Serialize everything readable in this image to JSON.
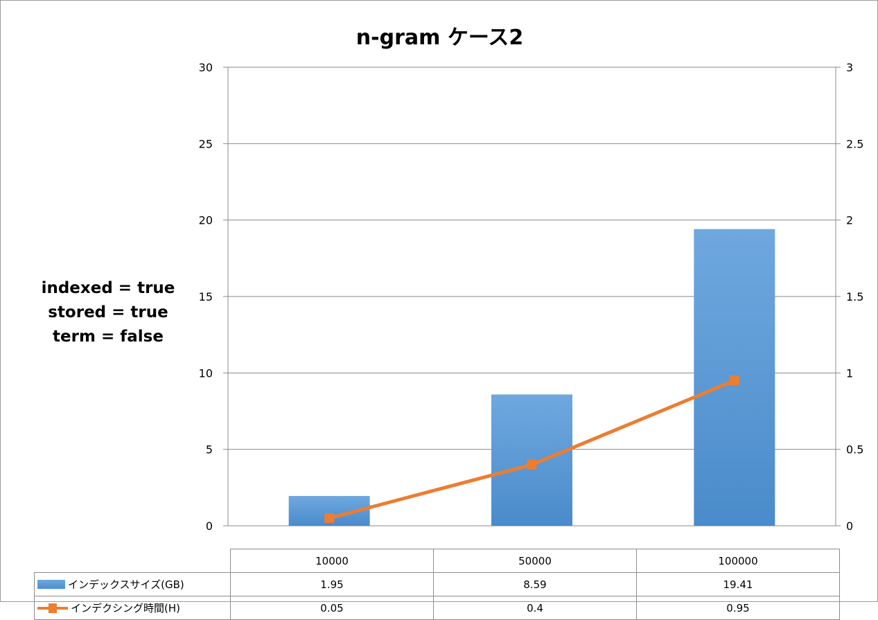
{
  "chart_data": {
    "type": "bar+line",
    "title": "n-gram ケース2",
    "annotation": [
      "indexed = true",
      "stored = true",
      "term = false"
    ],
    "categories": [
      "10000",
      "50000",
      "100000"
    ],
    "series": [
      {
        "name": "インデックスサイズ(GB)",
        "type": "bar",
        "axis": "left",
        "values": [
          1.95,
          8.59,
          19.41
        ],
        "value_labels": [
          "1.95",
          "8.59",
          "19.41"
        ],
        "color": "#5b9bd5"
      },
      {
        "name": "インデクシング時間(H)",
        "type": "line",
        "axis": "right",
        "values": [
          0.05,
          0.4,
          0.95
        ],
        "value_labels": [
          "0.05",
          "0.4",
          "0.95"
        ],
        "color": "#ed7d31"
      }
    ],
    "y_left": {
      "min": 0,
      "max": 30,
      "ticks": [
        "0",
        "5",
        "10",
        "15",
        "20",
        "25",
        "30"
      ]
    },
    "y_right": {
      "min": 0,
      "max": 3,
      "ticks": [
        "0",
        "0.5",
        "1",
        "1.5",
        "2",
        "2.5",
        "3"
      ]
    },
    "grid": true,
    "legend": "data-table"
  }
}
